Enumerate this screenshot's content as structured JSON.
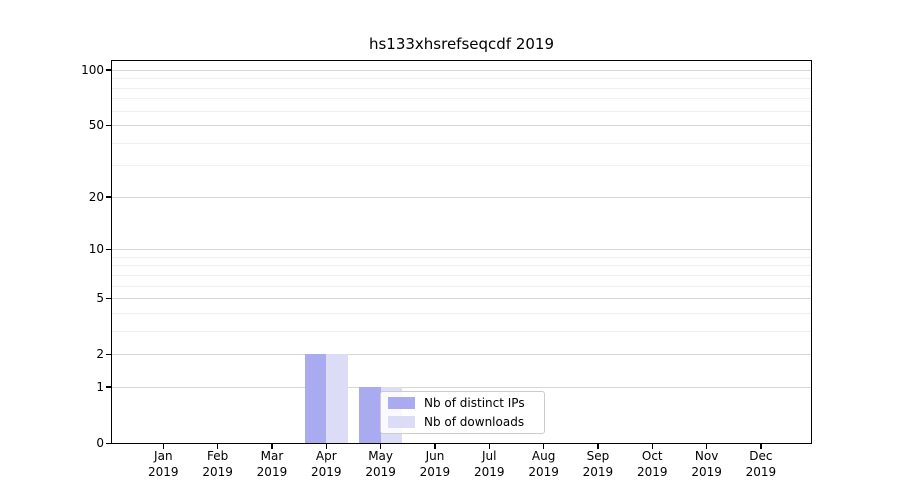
{
  "figure": {
    "background": "#ffffff",
    "text_color": "#000000"
  },
  "chart_data": {
    "type": "bar",
    "title": "hs133xhsrefseqcdf 2019",
    "categories": [
      {
        "month": "Jan",
        "year": "2019"
      },
      {
        "month": "Feb",
        "year": "2019"
      },
      {
        "month": "Mar",
        "year": "2019"
      },
      {
        "month": "Apr",
        "year": "2019"
      },
      {
        "month": "May",
        "year": "2019"
      },
      {
        "month": "Jun",
        "year": "2019"
      },
      {
        "month": "Jul",
        "year": "2019"
      },
      {
        "month": "Aug",
        "year": "2019"
      },
      {
        "month": "Sep",
        "year": "2019"
      },
      {
        "month": "Oct",
        "year": "2019"
      },
      {
        "month": "Nov",
        "year": "2019"
      },
      {
        "month": "Dec",
        "year": "2019"
      }
    ],
    "series": [
      {
        "name": "Nb of distinct IPs",
        "color": "#aaaaf0",
        "values": [
          0,
          0,
          0,
          2,
          1,
          0,
          0,
          0,
          0,
          0,
          0,
          0
        ]
      },
      {
        "name": "Nb of downloads",
        "color": "#dcdcf6",
        "values": [
          0,
          0,
          0,
          2,
          1,
          0,
          0,
          0,
          0,
          0,
          0,
          0
        ]
      }
    ],
    "y_axis": {
      "scale": "log1p",
      "major_ticks": [
        0,
        1,
        2,
        5,
        10,
        20,
        50,
        100
      ],
      "minor_ticks": [
        3,
        4,
        6,
        7,
        8,
        9,
        30,
        40,
        60,
        70,
        80,
        90
      ],
      "range": [
        0,
        112
      ]
    },
    "x_axis": {
      "tick_label_lines": 2
    },
    "grid": {
      "visible": true,
      "major_color": "#d6d6d6",
      "minor_color": "#efefef"
    },
    "legend": {
      "position": "inside-bottom-center",
      "entries": [
        "Nb of distinct IPs",
        "Nb of downloads"
      ]
    },
    "spine_color": "#000000"
  }
}
